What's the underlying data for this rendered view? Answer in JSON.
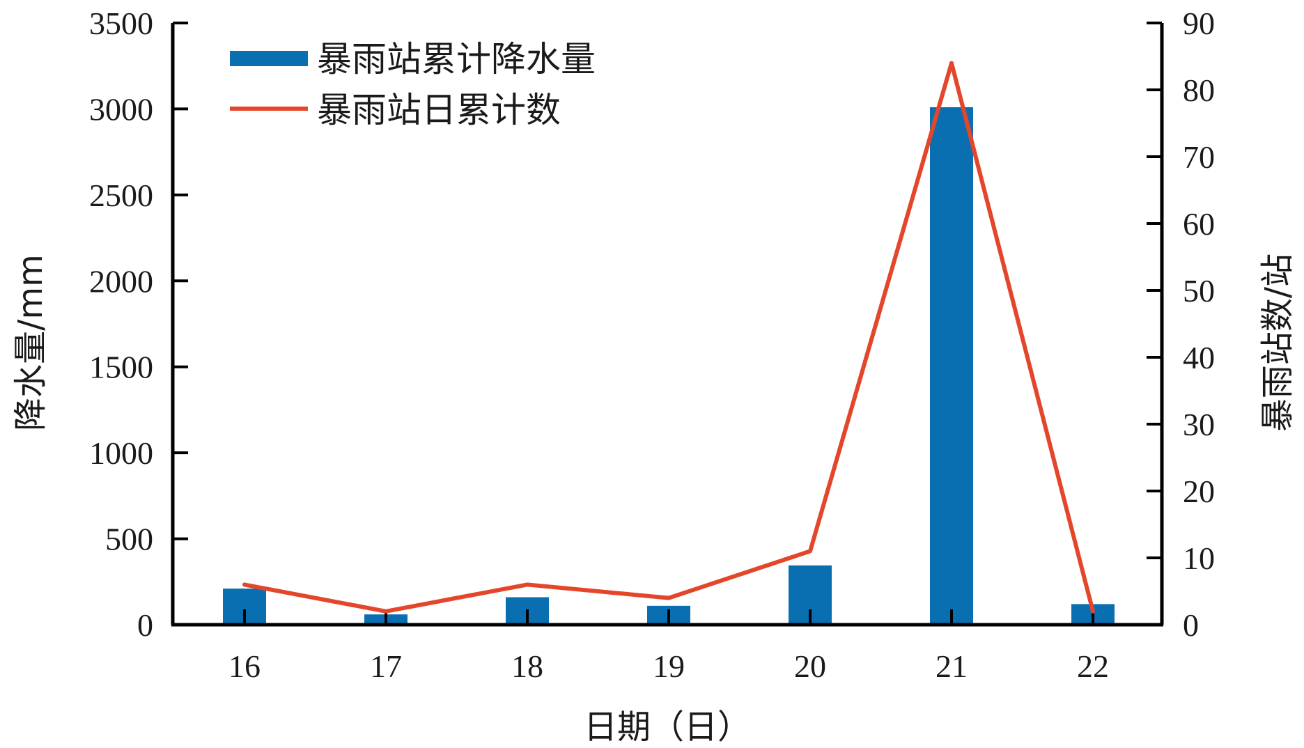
{
  "chart_data": {
    "type": "bar+line",
    "categories": [
      "16",
      "17",
      "18",
      "19",
      "20",
      "21",
      "22"
    ],
    "series": [
      {
        "name": "暴雨站累计降水量",
        "type": "bar",
        "axis": "left",
        "values": [
          210,
          60,
          160,
          110,
          345,
          3010,
          120
        ],
        "color": "#0a6fb0"
      },
      {
        "name": "暴雨站日累计数",
        "type": "line",
        "axis": "right",
        "values": [
          6,
          2,
          6,
          4,
          11,
          84,
          2
        ],
        "color": "#e4462b"
      }
    ],
    "xlabel": "日期（日）",
    "ylabel_left": "降水量/mm",
    "ylabel_right": "暴雨站数/站",
    "ylim_left": [
      0,
      3500
    ],
    "yticks_left": [
      "0",
      "500",
      "1000",
      "1500",
      "2000",
      "2500",
      "3000",
      "3500"
    ],
    "ylim_right": [
      0,
      90
    ],
    "yticks_right": [
      "0",
      "10",
      "20",
      "30",
      "40",
      "50",
      "60",
      "70",
      "80",
      "90"
    ],
    "grid": false,
    "legend_position": "top-left"
  }
}
